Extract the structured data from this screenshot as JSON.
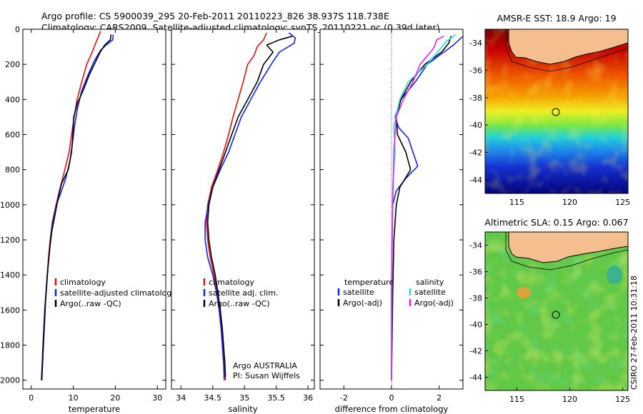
{
  "title_line1": "Argo profile: CS 5900039_295 20-Feb-2011 20110223_826 38.937S 118.738E",
  "title_line2": "Climatology: CARS2009. Satellite-adjusted climatology: synTS_20110221.nc (0.39d later)",
  "side_text": "CSIRO 27-Feb-2011 10:31:18",
  "colors": {
    "climatology": "#dd1111",
    "satellite": "#1122ee",
    "argo": "#000000",
    "satellite_salinity": "#22dddd",
    "argo_adj_salinity": "#ee22ee"
  },
  "chart_data": [
    {
      "type": "line",
      "title": "",
      "xlabel": "temperature",
      "ylabel": "",
      "xlim": [
        -2,
        32
      ],
      "ylim": [
        2050,
        0
      ],
      "xticks": [
        0,
        10,
        20,
        30
      ],
      "yticks": [
        0,
        200,
        400,
        600,
        800,
        1000,
        1200,
        1400,
        1600,
        1800,
        2000
      ],
      "legend": {
        "location": "lower-right",
        "entries": [
          "climatology",
          "satellite-adjusted climatology",
          "Argo(..raw -QC)"
        ]
      },
      "series": [
        {
          "name": "climatology",
          "color": "#dd1111",
          "points": [
            [
              16.5,
              10
            ],
            [
              16,
              40
            ],
            [
              15.3,
              80
            ],
            [
              14.5,
              130
            ],
            [
              13.2,
              200
            ],
            [
              12,
              300
            ],
            [
              10.9,
              400
            ],
            [
              10.2,
              500
            ],
            [
              9.6,
              600
            ],
            [
              9,
              700
            ],
            [
              8,
              800
            ],
            [
              6.9,
              900
            ],
            [
              5.9,
              1000
            ],
            [
              5,
              1100
            ],
            [
              4.5,
              1200
            ],
            [
              4.1,
              1300
            ],
            [
              3.8,
              1400
            ],
            [
              3.5,
              1500
            ],
            [
              3.2,
              1600
            ],
            [
              3,
              1700
            ],
            [
              2.8,
              1800
            ],
            [
              2.6,
              1900
            ],
            [
              2.5,
              2000
            ]
          ]
        },
        {
          "name": "satellite-adjusted climatology",
          "color": "#1122ee",
          "points": [
            [
              19.5,
              30
            ],
            [
              19.4,
              60
            ],
            [
              17.8,
              90
            ],
            [
              16.5,
              120
            ],
            [
              15,
              180
            ],
            [
              13.5,
              260
            ],
            [
              12,
              350
            ],
            [
              11,
              450
            ],
            [
              10.3,
              550
            ],
            [
              9.8,
              650
            ],
            [
              9.2,
              750
            ],
            [
              8.2,
              850
            ],
            [
              7.2,
              920
            ],
            [
              6,
              1000
            ],
            [
              5.1,
              1100
            ],
            [
              4.6,
              1200
            ],
            [
              4.2,
              1300
            ],
            [
              3.8,
              1400
            ],
            [
              3.5,
              1500
            ],
            [
              3.2,
              1600
            ],
            [
              3,
              1700
            ],
            [
              2.8,
              1800
            ],
            [
              2.6,
              1900
            ],
            [
              2.4,
              2000
            ]
          ]
        },
        {
          "name": "Argo(..raw -QC)",
          "color": "#000000",
          "points": [
            [
              19,
              30
            ],
            [
              18.8,
              60
            ],
            [
              17.5,
              90
            ],
            [
              16.4,
              130
            ],
            [
              15,
              200
            ],
            [
              13.8,
              260
            ],
            [
              12.5,
              340
            ],
            [
              11,
              420
            ],
            [
              10.1,
              500
            ],
            [
              9.9,
              600
            ],
            [
              9.6,
              700
            ],
            [
              8.8,
              800
            ],
            [
              7.2,
              880
            ],
            [
              6.5,
              950
            ],
            [
              5.7,
              1050
            ],
            [
              4.9,
              1150
            ],
            [
              4.4,
              1250
            ],
            [
              4,
              1350
            ],
            [
              3.7,
              1450
            ],
            [
              3.4,
              1550
            ],
            [
              3.2,
              1650
            ],
            [
              3,
              1750
            ],
            [
              2.8,
              1850
            ],
            [
              2.6,
              1950
            ],
            [
              2.5,
              2000
            ]
          ]
        }
      ]
    },
    {
      "type": "line",
      "title": "",
      "xlabel": "salinity",
      "ylabel": "",
      "xlim": [
        33.85,
        36.1
      ],
      "ylim": [
        2050,
        0
      ],
      "xticks": [
        34,
        34.5,
        35,
        35.5,
        36
      ],
      "legend": {
        "location": "lower-right",
        "entries": [
          "climatology",
          "satellite adj. clim.",
          "Argo(..raw -QC)"
        ]
      },
      "annotations": [
        "Argo AUSTRALIA",
        "PI: Susan Wijffels"
      ],
      "series": [
        {
          "name": "climatology",
          "color": "#dd1111",
          "points": [
            [
              35.35,
              20
            ],
            [
              35.3,
              60
            ],
            [
              35.2,
              100
            ],
            [
              35.15,
              150
            ],
            [
              35.05,
              200
            ],
            [
              34.98,
              300
            ],
            [
              34.9,
              400
            ],
            [
              34.82,
              500
            ],
            [
              34.75,
              600
            ],
            [
              34.67,
              700
            ],
            [
              34.58,
              800
            ],
            [
              34.48,
              900
            ],
            [
              34.42,
              1000
            ],
            [
              34.4,
              1100
            ],
            [
              34.42,
              1200
            ],
            [
              34.46,
              1300
            ],
            [
              34.52,
              1400
            ],
            [
              34.57,
              1500
            ],
            [
              34.61,
              1600
            ],
            [
              34.64,
              1700
            ],
            [
              34.66,
              1800
            ],
            [
              34.68,
              1900
            ],
            [
              34.7,
              2000
            ]
          ]
        },
        {
          "name": "satellite adj. clim.",
          "color": "#1122ee",
          "points": [
            [
              35.7,
              20
            ],
            [
              35.8,
              50
            ],
            [
              35.78,
              80
            ],
            [
              35.55,
              130
            ],
            [
              35.42,
              200
            ],
            [
              35.25,
              300
            ],
            [
              35.1,
              400
            ],
            [
              34.95,
              500
            ],
            [
              34.85,
              600
            ],
            [
              34.75,
              700
            ],
            [
              34.62,
              800
            ],
            [
              34.5,
              900
            ],
            [
              34.43,
              1000
            ],
            [
              34.38,
              1100
            ],
            [
              34.38,
              1200
            ],
            [
              34.42,
              1300
            ],
            [
              34.5,
              1400
            ],
            [
              34.56,
              1500
            ],
            [
              34.6,
              1600
            ],
            [
              34.63,
              1700
            ],
            [
              34.65,
              1800
            ],
            [
              34.67,
              1900
            ],
            [
              34.68,
              2000
            ]
          ]
        },
        {
          "name": "Argo(..raw -QC)",
          "color": "#000000",
          "points": [
            [
              35.75,
              40
            ],
            [
              35.55,
              60
            ],
            [
              35.35,
              90
            ],
            [
              35.45,
              130
            ],
            [
              35.3,
              200
            ],
            [
              35.2,
              300
            ],
            [
              35.05,
              400
            ],
            [
              34.9,
              500
            ],
            [
              34.8,
              600
            ],
            [
              34.7,
              700
            ],
            [
              34.6,
              800
            ],
            [
              34.5,
              900
            ],
            [
              34.44,
              1000
            ],
            [
              34.42,
              1100
            ],
            [
              34.44,
              1200
            ],
            [
              34.48,
              1300
            ],
            [
              34.54,
              1400
            ],
            [
              34.58,
              1500
            ],
            [
              34.62,
              1600
            ],
            [
              34.65,
              1700
            ],
            [
              34.67,
              1800
            ],
            [
              34.69,
              1900
            ],
            [
              34.7,
              1980
            ]
          ]
        }
      ]
    },
    {
      "type": "line",
      "title": "",
      "xlabel": "difference from climatology",
      "ylabel": "",
      "xlim": [
        -3,
        3
      ],
      "ylim": [
        2050,
        0
      ],
      "xticks": [
        -2,
        0,
        2
      ],
      "zero_line": true,
      "legend": {
        "location": "lower-right",
        "headers": [
          "temperature",
          "salinity"
        ],
        "entries": [
          "satellite",
          "Argo(-adj)",
          "satellite",
          "Argo(-adj)"
        ]
      },
      "series": [
        {
          "name": "satellite",
          "group": "temperature",
          "color": "#1122ee",
          "points": [
            [
              3,
              40
            ],
            [
              2.6,
              90
            ],
            [
              2.1,
              140
            ],
            [
              1.5,
              200
            ],
            [
              1,
              300
            ],
            [
              0.4,
              400
            ],
            [
              0.15,
              500
            ],
            [
              0.3,
              560
            ],
            [
              0.7,
              620
            ],
            [
              0.9,
              700
            ],
            [
              1.1,
              780
            ],
            [
              0.6,
              850
            ],
            [
              0.2,
              920
            ],
            [
              0.05,
              1000
            ],
            [
              0.02,
              1200
            ],
            [
              0,
              1500
            ],
            [
              0,
              2000
            ]
          ]
        },
        {
          "name": "Argo(-adj)",
          "group": "temperature",
          "color": "#000000",
          "points": [
            [
              2.5,
              40
            ],
            [
              2.4,
              80
            ],
            [
              2.1,
              130
            ],
            [
              1.4,
              200
            ],
            [
              0.8,
              300
            ],
            [
              0.4,
              400
            ],
            [
              0.2,
              500
            ],
            [
              0.25,
              600
            ],
            [
              0.6,
              700
            ],
            [
              0.8,
              800
            ],
            [
              0.35,
              900
            ],
            [
              0.2,
              1000
            ],
            [
              0.1,
              1200
            ],
            [
              0.05,
              1500
            ],
            [
              0,
              2000
            ]
          ]
        },
        {
          "name": "satellite",
          "group": "salinity",
          "color": "#22dddd",
          "points": [
            [
              2.7,
              30
            ],
            [
              2.3,
              70
            ],
            [
              2,
              120
            ],
            [
              1.5,
              200
            ],
            [
              0.7,
              300
            ],
            [
              0.35,
              400
            ],
            [
              0.1,
              550
            ],
            [
              0.15,
              700
            ],
            [
              0.05,
              900
            ],
            [
              0.02,
              1200
            ],
            [
              0,
              2000
            ]
          ]
        },
        {
          "name": "Argo(-adj)",
          "group": "salinity",
          "color": "#ee22ee",
          "points": [
            [
              2.2,
              40
            ],
            [
              1.9,
              60
            ],
            [
              1.8,
              100
            ],
            [
              1.7,
              120
            ],
            [
              1.2,
              200
            ],
            [
              0.9,
              300
            ],
            [
              0.5,
              400
            ],
            [
              0.2,
              500
            ],
            [
              0.1,
              700
            ],
            [
              0.05,
              1000
            ],
            [
              0,
              1500
            ],
            [
              0,
              2000
            ]
          ]
        }
      ]
    },
    {
      "type": "heatmap",
      "title": "AMSR-E SST: 18.9 Argo: 19",
      "xlim": [
        112,
        125.5
      ],
      "ylim": [
        -45,
        -33
      ],
      "xticks": [
        115,
        120,
        125
      ],
      "yticks": [
        -34,
        -36,
        -38,
        -40,
        -42,
        -44
      ],
      "marker": {
        "lon": 118.738,
        "lat": -38.937
      }
    },
    {
      "type": "heatmap",
      "title": "Altimetric SLA: 0.15 Argo: 0.067",
      "xlim": [
        112,
        125.5
      ],
      "ylim": [
        -45,
        -33
      ],
      "xticks": [
        115,
        120,
        125
      ],
      "yticks": [
        -34,
        -36,
        -38,
        -40,
        -42,
        -44
      ],
      "marker": {
        "lon": 118.738,
        "lat": -38.937
      }
    }
  ]
}
